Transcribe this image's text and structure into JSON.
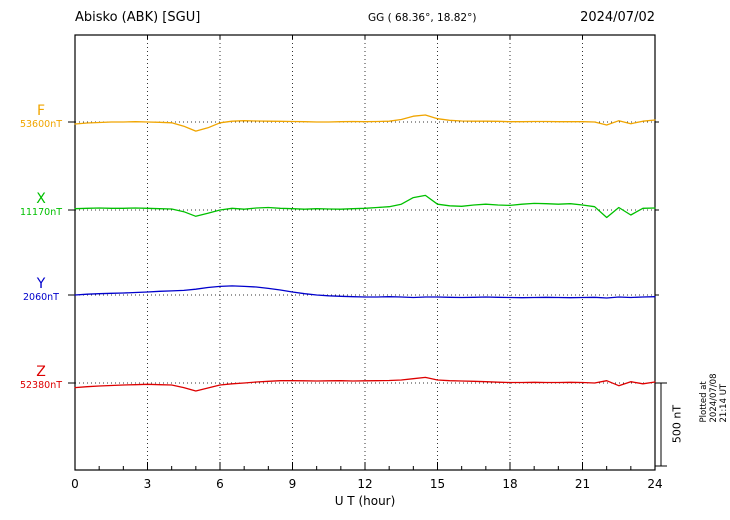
{
  "header": {
    "station": "Abisko (ABK)  [SGU]",
    "coords": "GG ( 68.36°,  18.82°)",
    "date": "2024/07/02"
  },
  "x_axis": {
    "label": "U T (hour)",
    "ticks": [
      "0",
      "3",
      "6",
      "9",
      "12",
      "15",
      "18",
      "21",
      "24"
    ]
  },
  "side": {
    "scale_label": "500 nT",
    "plotted_at": "Plotted at 2024/07/08 21:14 UT"
  },
  "chart_data": {
    "type": "line",
    "title": "Abisko (ABK) [SGU] — 2024/07/02",
    "xlabel": "U T (hour)",
    "x_range": [
      0,
      24
    ],
    "x_step_hours": 0.5,
    "scale_bar_nT": 500,
    "grid": "dotted verticals every 3 h, dotted baseline per trace",
    "gridlines_hours": [
      3,
      6,
      9,
      12,
      15,
      18,
      21
    ],
    "series": [
      {
        "name": "F",
        "baseline": "53600nT",
        "color": "#f0a500",
        "offsets_nT": [
          -12,
          -6,
          -3,
          0,
          0,
          2,
          0,
          -2,
          -5,
          -25,
          -55,
          -35,
          -5,
          5,
          8,
          6,
          5,
          4,
          3,
          2,
          0,
          0,
          2,
          3,
          2,
          3,
          5,
          15,
          35,
          42,
          20,
          10,
          6,
          5,
          5,
          4,
          2,
          2,
          3,
          3,
          2,
          2,
          2,
          0,
          -18,
          8,
          -10,
          5,
          12
        ]
      },
      {
        "name": "X",
        "baseline": "11170nT",
        "color": "#00c000",
        "offsets_nT": [
          8,
          10,
          12,
          10,
          10,
          12,
          10,
          8,
          6,
          -10,
          -38,
          -20,
          0,
          10,
          5,
          12,
          15,
          10,
          8,
          5,
          8,
          6,
          5,
          8,
          10,
          15,
          20,
          35,
          75,
          88,
          35,
          25,
          22,
          30,
          35,
          30,
          28,
          35,
          40,
          38,
          35,
          38,
          30,
          20,
          -45,
          15,
          -30,
          10,
          12
        ]
      },
      {
        "name": "Y",
        "baseline": "2060nT",
        "color": "#0000cc",
        "offsets_nT": [
          0,
          5,
          8,
          10,
          12,
          15,
          18,
          22,
          25,
          28,
          35,
          45,
          52,
          55,
          52,
          48,
          40,
          30,
          18,
          8,
          0,
          -5,
          -8,
          -10,
          -12,
          -12,
          -10,
          -12,
          -15,
          -12,
          -12,
          -14,
          -15,
          -14,
          -12,
          -14,
          -15,
          -16,
          -15,
          -14,
          -15,
          -16,
          -15,
          -14,
          -18,
          -12,
          -15,
          -12,
          -10
        ]
      },
      {
        "name": "Z",
        "baseline": "52380nT",
        "color": "#dd0000",
        "offsets_nT": [
          -28,
          -22,
          -18,
          -15,
          -12,
          -10,
          -8,
          -10,
          -12,
          -28,
          -48,
          -30,
          -12,
          -5,
          0,
          6,
          10,
          14,
          14,
          13,
          12,
          13,
          14,
          12,
          13,
          14,
          15,
          18,
          26,
          34,
          18,
          14,
          12,
          10,
          8,
          5,
          3,
          3,
          4,
          3,
          3,
          4,
          3,
          0,
          14,
          -16,
          8,
          -5,
          6
        ]
      }
    ]
  }
}
